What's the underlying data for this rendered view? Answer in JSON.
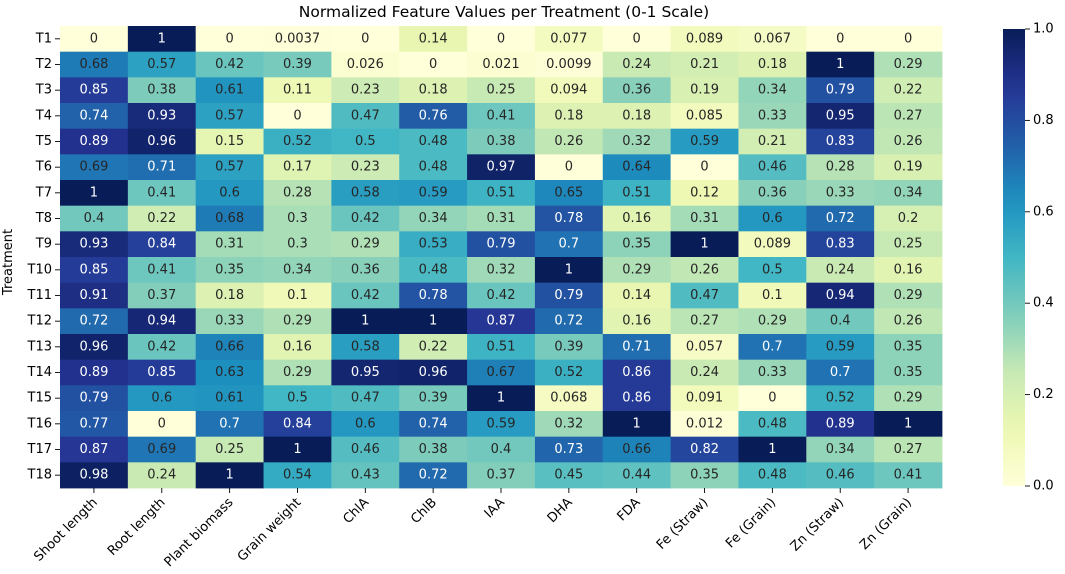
{
  "chart_data": {
    "type": "heatmap",
    "title": "Normalized Feature Values per Treatment (0-1 Scale)",
    "xlabel": "",
    "ylabel": "Treatment",
    "colormap": "YlGnBu",
    "vmin": 0.0,
    "vmax": 1.0,
    "colorbar_ticks": [
      0.0,
      0.2,
      0.4,
      0.6,
      0.8,
      1.0
    ],
    "colorbar_tick_labels": [
      "0.0",
      "0.2",
      "0.4",
      "0.6",
      "0.8",
      "1.0"
    ],
    "columns": [
      "Shoot length",
      "Root length",
      "Plant biomass",
      "Grain weight",
      "ChlA",
      "ChlB",
      "IAA",
      "DHA",
      "FDA",
      "Fe (Straw)",
      "Fe (Grain)",
      "Zn (Straw)",
      "Zn (Grain)"
    ],
    "rows": [
      "T1",
      "T2",
      "T3",
      "T4",
      "T5",
      "T6",
      "T7",
      "T8",
      "T9",
      "T10",
      "T11",
      "T12",
      "T13",
      "T14",
      "T15",
      "T16",
      "T17",
      "T18"
    ],
    "values": [
      [
        0,
        1,
        0,
        0.0037,
        0,
        0.14,
        0,
        0.077,
        0,
        0.089,
        0.067,
        0,
        0
      ],
      [
        0.68,
        0.57,
        0.42,
        0.39,
        0.026,
        0,
        0.021,
        0.0099,
        0.24,
        0.21,
        0.18,
        1,
        0.29
      ],
      [
        0.85,
        0.38,
        0.61,
        0.11,
        0.23,
        0.18,
        0.25,
        0.094,
        0.36,
        0.19,
        0.34,
        0.79,
        0.22
      ],
      [
        0.74,
        0.93,
        0.57,
        0,
        0.47,
        0.76,
        0.41,
        0.18,
        0.18,
        0.085,
        0.33,
        0.95,
        0.27
      ],
      [
        0.89,
        0.96,
        0.15,
        0.52,
        0.5,
        0.48,
        0.38,
        0.26,
        0.32,
        0.59,
        0.21,
        0.83,
        0.26
      ],
      [
        0.69,
        0.71,
        0.57,
        0.17,
        0.23,
        0.48,
        0.97,
        0,
        0.64,
        0,
        0.46,
        0.28,
        0.19
      ],
      [
        1,
        0.41,
        0.6,
        0.28,
        0.58,
        0.59,
        0.51,
        0.65,
        0.51,
        0.12,
        0.36,
        0.33,
        0.34
      ],
      [
        0.4,
        0.22,
        0.68,
        0.3,
        0.42,
        0.34,
        0.31,
        0.78,
        0.16,
        0.31,
        0.6,
        0.72,
        0.2
      ],
      [
        0.93,
        0.84,
        0.31,
        0.3,
        0.29,
        0.53,
        0.79,
        0.7,
        0.35,
        1,
        0.089,
        0.83,
        0.25
      ],
      [
        0.85,
        0.41,
        0.35,
        0.34,
        0.36,
        0.48,
        0.32,
        1,
        0.29,
        0.26,
        0.5,
        0.24,
        0.16
      ],
      [
        0.91,
        0.37,
        0.18,
        0.1,
        0.42,
        0.78,
        0.42,
        0.79,
        0.14,
        0.47,
        0.1,
        0.94,
        0.29
      ],
      [
        0.72,
        0.94,
        0.33,
        0.29,
        1,
        1,
        0.87,
        0.72,
        0.16,
        0.27,
        0.29,
        0.4,
        0.26
      ],
      [
        0.96,
        0.42,
        0.66,
        0.16,
        0.58,
        0.22,
        0.51,
        0.39,
        0.71,
        0.057,
        0.7,
        0.59,
        0.35
      ],
      [
        0.89,
        0.85,
        0.63,
        0.29,
        0.95,
        0.96,
        0.67,
        0.52,
        0.86,
        0.24,
        0.33,
        0.7,
        0.35
      ],
      [
        0.79,
        0.6,
        0.61,
        0.5,
        0.47,
        0.39,
        1,
        0.068,
        0.86,
        0.091,
        0,
        0.52,
        0.29
      ],
      [
        0.77,
        0,
        0.7,
        0.84,
        0.6,
        0.74,
        0.59,
        0.32,
        1,
        0.012,
        0.48,
        0.89,
        1
      ],
      [
        0.87,
        0.69,
        0.25,
        1,
        0.46,
        0.38,
        0.4,
        0.73,
        0.66,
        0.82,
        1,
        0.34,
        0.27
      ],
      [
        0.98,
        0.24,
        1,
        0.54,
        0.43,
        0.72,
        0.37,
        0.45,
        0.44,
        0.35,
        0.48,
        0.46,
        0.41
      ]
    ],
    "value_labels": [
      [
        "0",
        "1",
        "0",
        "0.0037",
        "0",
        "0.14",
        "0",
        "0.077",
        "0",
        "0.089",
        "0.067",
        "0",
        "0"
      ],
      [
        "0.68",
        "0.57",
        "0.42",
        "0.39",
        "0.026",
        "0",
        "0.021",
        "0.0099",
        "0.24",
        "0.21",
        "0.18",
        "1",
        "0.29"
      ],
      [
        "0.85",
        "0.38",
        "0.61",
        "0.11",
        "0.23",
        "0.18",
        "0.25",
        "0.094",
        "0.36",
        "0.19",
        "0.34",
        "0.79",
        "0.22"
      ],
      [
        "0.74",
        "0.93",
        "0.57",
        "0",
        "0.47",
        "0.76",
        "0.41",
        "0.18",
        "0.18",
        "0.085",
        "0.33",
        "0.95",
        "0.27"
      ],
      [
        "0.89",
        "0.96",
        "0.15",
        "0.52",
        "0.5",
        "0.48",
        "0.38",
        "0.26",
        "0.32",
        "0.59",
        "0.21",
        "0.83",
        "0.26"
      ],
      [
        "0.69",
        "0.71",
        "0.57",
        "0.17",
        "0.23",
        "0.48",
        "0.97",
        "0",
        "0.64",
        "0",
        "0.46",
        "0.28",
        "0.19"
      ],
      [
        "1",
        "0.41",
        "0.6",
        "0.28",
        "0.58",
        "0.59",
        "0.51",
        "0.65",
        "0.51",
        "0.12",
        "0.36",
        "0.33",
        "0.34"
      ],
      [
        "0.4",
        "0.22",
        "0.68",
        "0.3",
        "0.42",
        "0.34",
        "0.31",
        "0.78",
        "0.16",
        "0.31",
        "0.6",
        "0.72",
        "0.2"
      ],
      [
        "0.93",
        "0.84",
        "0.31",
        "0.3",
        "0.29",
        "0.53",
        "0.79",
        "0.7",
        "0.35",
        "1",
        "0.089",
        "0.83",
        "0.25"
      ],
      [
        "0.85",
        "0.41",
        "0.35",
        "0.34",
        "0.36",
        "0.48",
        "0.32",
        "1",
        "0.29",
        "0.26",
        "0.5",
        "0.24",
        "0.16"
      ],
      [
        "0.91",
        "0.37",
        "0.18",
        "0.1",
        "0.42",
        "0.78",
        "0.42",
        "0.79",
        "0.14",
        "0.47",
        "0.1",
        "0.94",
        "0.29"
      ],
      [
        "0.72",
        "0.94",
        "0.33",
        "0.29",
        "1",
        "1",
        "0.87",
        "0.72",
        "0.16",
        "0.27",
        "0.29",
        "0.4",
        "0.26"
      ],
      [
        "0.96",
        "0.42",
        "0.66",
        "0.16",
        "0.58",
        "0.22",
        "0.51",
        "0.39",
        "0.71",
        "0.057",
        "0.7",
        "0.59",
        "0.35"
      ],
      [
        "0.89",
        "0.85",
        "0.63",
        "0.29",
        "0.95",
        "0.96",
        "0.67",
        "0.52",
        "0.86",
        "0.24",
        "0.33",
        "0.7",
        "0.35"
      ],
      [
        "0.79",
        "0.6",
        "0.61",
        "0.5",
        "0.47",
        "0.39",
        "1",
        "0.068",
        "0.86",
        "0.091",
        "0",
        "0.52",
        "0.29"
      ],
      [
        "0.77",
        "0",
        "0.7",
        "0.84",
        "0.6",
        "0.74",
        "0.59",
        "0.32",
        "1",
        "0.012",
        "0.48",
        "0.89",
        "1"
      ],
      [
        "0.87",
        "0.69",
        "0.25",
        "1",
        "0.46",
        "0.38",
        "0.4",
        "0.73",
        "0.66",
        "0.82",
        "1",
        "0.34",
        "0.27"
      ],
      [
        "0.98",
        "0.24",
        "1",
        "0.54",
        "0.43",
        "0.72",
        "0.37",
        "0.45",
        "0.44",
        "0.35",
        "0.48",
        "0.46",
        "0.41"
      ]
    ]
  }
}
